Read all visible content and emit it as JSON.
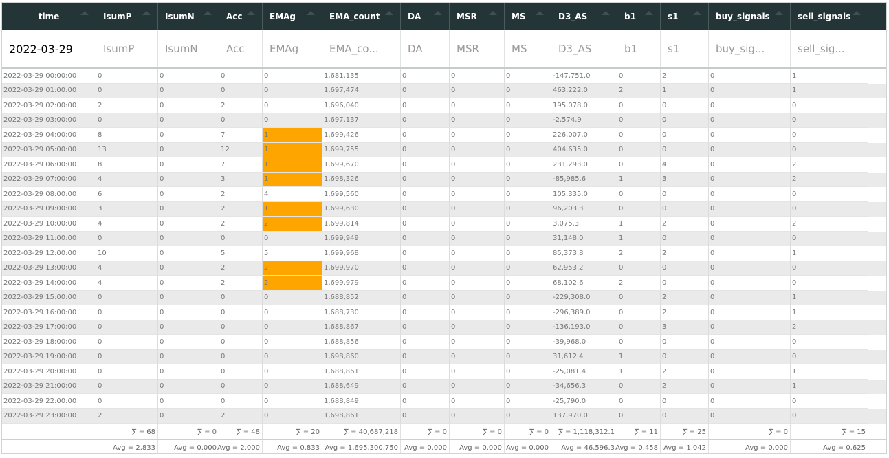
{
  "filters": {
    "date_value": "2022-03-29",
    "placeholders": [
      "IsumP",
      "IsumN",
      "Acc",
      "EMAg",
      "EMA_co...",
      "DA",
      "MSR",
      "MS",
      "D3_AS",
      "b1",
      "s1",
      "buy_sig...",
      "sell_sig..."
    ]
  },
  "highlight_color": "#ffa500",
  "header_bg": "#243538",
  "table": {
    "columns": [
      "time",
      "IsumP",
      "IsumN",
      "Acc",
      "EMAg",
      "EMA_count",
      "DA",
      "MSR",
      "MS",
      "D3_AS",
      "b1",
      "s1",
      "buy_signals",
      "sell_signals"
    ],
    "rows": [
      {
        "cells": [
          "2022-03-29 00:00:00",
          "0",
          "0",
          "0",
          "0",
          "1,681,135",
          "0",
          "0",
          "0",
          "-147,751.0",
          "0",
          "2",
          "0",
          "1"
        ],
        "hl": false
      },
      {
        "cells": [
          "2022-03-29 01:00:00",
          "0",
          "0",
          "0",
          "0",
          "1,697,474",
          "0",
          "0",
          "0",
          "463,222.0",
          "2",
          "1",
          "0",
          "1"
        ],
        "hl": false
      },
      {
        "cells": [
          "2022-03-29 02:00:00",
          "2",
          "0",
          "2",
          "0",
          "1,696,040",
          "0",
          "0",
          "0",
          "195,078.0",
          "0",
          "0",
          "0",
          "0"
        ],
        "hl": false
      },
      {
        "cells": [
          "2022-03-29 03:00:00",
          "0",
          "0",
          "0",
          "0",
          "1,697,137",
          "0",
          "0",
          "0",
          "-2,574.9",
          "0",
          "0",
          "0",
          "0"
        ],
        "hl": false
      },
      {
        "cells": [
          "2022-03-29 04:00:00",
          "8",
          "0",
          "7",
          "1",
          "1,699,426",
          "0",
          "0",
          "0",
          "226,007.0",
          "0",
          "0",
          "0",
          "0"
        ],
        "hl": true
      },
      {
        "cells": [
          "2022-03-29 05:00:00",
          "13",
          "0",
          "12",
          "1",
          "1,699,755",
          "0",
          "0",
          "0",
          "404,635.0",
          "0",
          "0",
          "0",
          "0"
        ],
        "hl": true
      },
      {
        "cells": [
          "2022-03-29 06:00:00",
          "8",
          "0",
          "7",
          "1",
          "1,699,670",
          "0",
          "0",
          "0",
          "231,293.0",
          "0",
          "4",
          "0",
          "2"
        ],
        "hl": true
      },
      {
        "cells": [
          "2022-03-29 07:00:00",
          "4",
          "0",
          "3",
          "1",
          "1,698,326",
          "0",
          "0",
          "0",
          "-85,985.6",
          "1",
          "3",
          "0",
          "2"
        ],
        "hl": true
      },
      {
        "cells": [
          "2022-03-29 08:00:00",
          "6",
          "0",
          "2",
          "4",
          "1,699,560",
          "0",
          "0",
          "0",
          "105,335.0",
          "0",
          "0",
          "0",
          "0"
        ],
        "hl": false
      },
      {
        "cells": [
          "2022-03-29 09:00:00",
          "3",
          "0",
          "2",
          "1",
          "1,699,630",
          "0",
          "0",
          "0",
          "96,203.3",
          "0",
          "0",
          "0",
          "0"
        ],
        "hl": true
      },
      {
        "cells": [
          "2022-03-29 10:00:00",
          "4",
          "0",
          "2",
          "2",
          "1,699,814",
          "0",
          "0",
          "0",
          "3,075.3",
          "1",
          "2",
          "0",
          "2"
        ],
        "hl": true
      },
      {
        "cells": [
          "2022-03-29 11:00:00",
          "0",
          "0",
          "0",
          "0",
          "1,699,949",
          "0",
          "0",
          "0",
          "31,148.0",
          "1",
          "0",
          "0",
          "0"
        ],
        "hl": false
      },
      {
        "cells": [
          "2022-03-29 12:00:00",
          "10",
          "0",
          "5",
          "5",
          "1,699,968",
          "0",
          "0",
          "0",
          "85,373.8",
          "2",
          "2",
          "0",
          "1"
        ],
        "hl": false
      },
      {
        "cells": [
          "2022-03-29 13:00:00",
          "4",
          "0",
          "2",
          "2",
          "1,699,970",
          "0",
          "0",
          "0",
          "62,953.2",
          "0",
          "0",
          "0",
          "0"
        ],
        "hl": true
      },
      {
        "cells": [
          "2022-03-29 14:00:00",
          "4",
          "0",
          "2",
          "2",
          "1,699,979",
          "0",
          "0",
          "0",
          "68,102.6",
          "2",
          "0",
          "0",
          "0"
        ],
        "hl": true
      },
      {
        "cells": [
          "2022-03-29 15:00:00",
          "0",
          "0",
          "0",
          "0",
          "1,688,852",
          "0",
          "0",
          "0",
          "-229,308.0",
          "0",
          "2",
          "0",
          "1"
        ],
        "hl": false
      },
      {
        "cells": [
          "2022-03-29 16:00:00",
          "0",
          "0",
          "0",
          "0",
          "1,688,730",
          "0",
          "0",
          "0",
          "-296,389.0",
          "0",
          "2",
          "0",
          "1"
        ],
        "hl": false
      },
      {
        "cells": [
          "2022-03-29 17:00:00",
          "0",
          "0",
          "0",
          "0",
          "1,688,867",
          "0",
          "0",
          "0",
          "-136,193.0",
          "0",
          "3",
          "0",
          "2"
        ],
        "hl": false
      },
      {
        "cells": [
          "2022-03-29 18:00:00",
          "0",
          "0",
          "0",
          "0",
          "1,688,856",
          "0",
          "0",
          "0",
          "-39,968.0",
          "0",
          "0",
          "0",
          "0"
        ],
        "hl": false
      },
      {
        "cells": [
          "2022-03-29 19:00:00",
          "0",
          "0",
          "0",
          "0",
          "1,698,860",
          "0",
          "0",
          "0",
          "31,612.4",
          "1",
          "0",
          "0",
          "0"
        ],
        "hl": false
      },
      {
        "cells": [
          "2022-03-29 20:00:00",
          "0",
          "0",
          "0",
          "0",
          "1,688,861",
          "0",
          "0",
          "0",
          "-25,081.4",
          "1",
          "2",
          "0",
          "1"
        ],
        "hl": false
      },
      {
        "cells": [
          "2022-03-29 21:00:00",
          "0",
          "0",
          "0",
          "0",
          "1,688,649",
          "0",
          "0",
          "0",
          "-34,656.3",
          "0",
          "2",
          "0",
          "1"
        ],
        "hl": false
      },
      {
        "cells": [
          "2022-03-29 22:00:00",
          "0",
          "0",
          "0",
          "0",
          "1,688,849",
          "0",
          "0",
          "0",
          "-25,790.0",
          "0",
          "0",
          "0",
          "0"
        ],
        "hl": false
      },
      {
        "cells": [
          "2022-03-29 23:00:00",
          "2",
          "0",
          "2",
          "0",
          "1,698,861",
          "0",
          "0",
          "0",
          "137,970.0",
          "0",
          "0",
          "0",
          "0"
        ],
        "hl": false
      }
    ],
    "sums": [
      "",
      "∑ = 68",
      "∑ = 0",
      "∑ = 48",
      "∑ = 20",
      "∑ = 40,687,218",
      "∑ = 0",
      "∑ = 0",
      "∑ = 0",
      "∑ = 1,118,312.1",
      "∑ = 11",
      "∑ = 25",
      "∑ = 0",
      "∑ = 15"
    ],
    "avgs": [
      "",
      "Avg = 2.833",
      "Avg = 0.000",
      "Avg = 2.000",
      "Avg = 0.833",
      "Avg = 1,695,300.750",
      "Avg = 0.000",
      "Avg = 0.000",
      "Avg = 0.000",
      "Avg = 46,596.3",
      "Avg = 0.458",
      "Avg = 1.042",
      "Avg = 0.000",
      "Avg = 0.625"
    ]
  }
}
